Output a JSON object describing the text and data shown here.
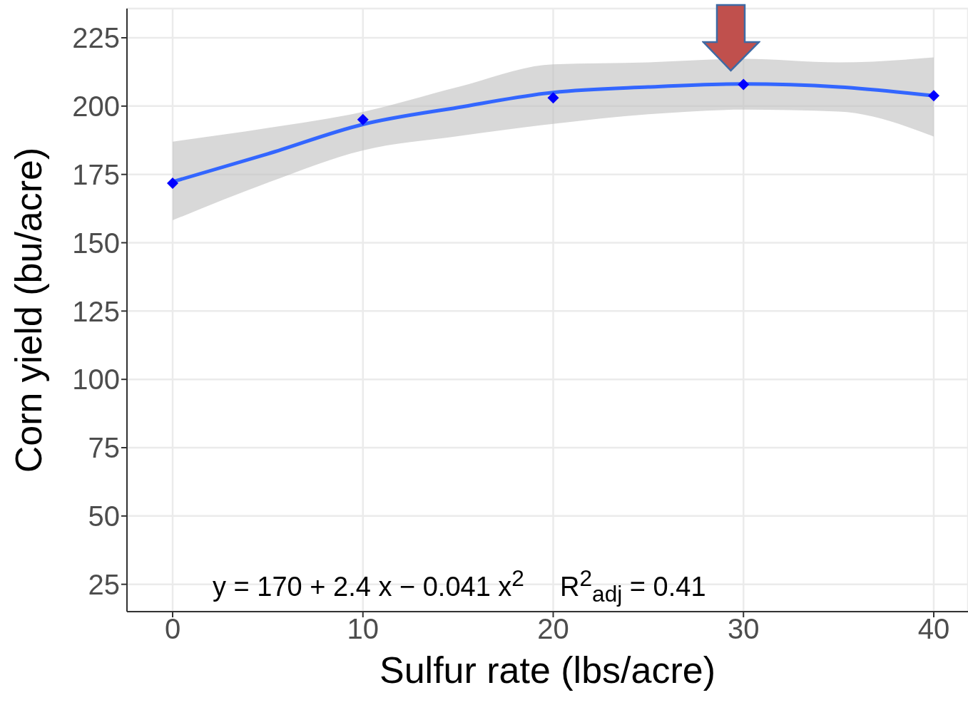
{
  "chart_data": {
    "type": "scatter",
    "xlabel": "Sulfur rate (lbs/acre)",
    "ylabel": "Corn yield (bu/acre)",
    "xlim": [
      -2.4,
      41.8
    ],
    "xticks": [
      0,
      10,
      20,
      30,
      40
    ],
    "ylim": [
      15,
      235.7
    ],
    "yticks": [
      25,
      50,
      75,
      100,
      125,
      150,
      175,
      200,
      225
    ],
    "grid": true,
    "marker": "diamond",
    "series": [
      {
        "type": "line",
        "marker": "none",
        "color": "#3366ff",
        "x": [
          0,
          5,
          10,
          15,
          20,
          25,
          30,
          35,
          40
        ],
        "values": [
          172.3,
          182.5,
          193.3,
          199.5,
          205,
          207,
          208.1,
          207,
          203.8
        ],
        "lower": [
          158.2,
          172,
          183.8,
          189,
          193.5,
          197,
          198.7,
          198,
          188.9
        ],
        "upper": [
          187,
          192,
          197.9,
          207,
          215.3,
          216,
          217.3,
          216,
          217.8
        ]
      },
      {
        "color": "#0000ff",
        "x": [
          0,
          10,
          20,
          30,
          40
        ],
        "values": [
          171.8,
          195.1,
          203,
          207.9,
          203.8
        ]
      }
    ],
    "annotations": [
      "y = 170 + 2.4 x − 0.041 x$^{2}$",
      "R$^{2}$$_{adj}$ = 0.41"
    ]
  }
}
